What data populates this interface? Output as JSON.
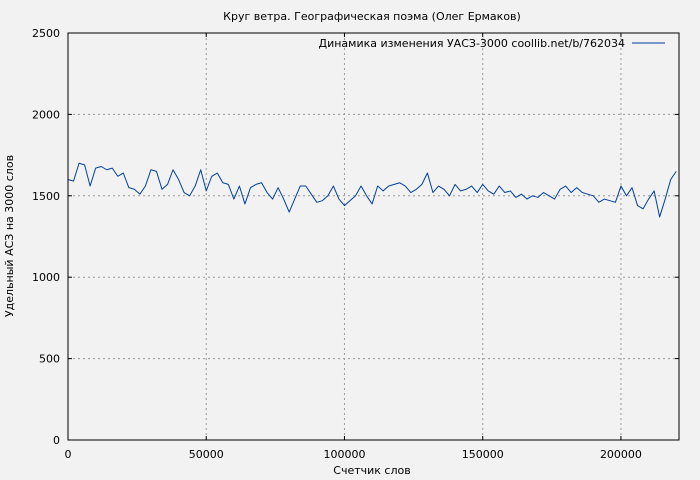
{
  "chart_data": {
    "type": "line",
    "title": "Круг ветра. Географическая поэма (Олег Ермаков)",
    "xlabel": "Счетчик слов",
    "ylabel": "Удельный АСЗ на 3000 слов",
    "xlim": [
      0,
      221000
    ],
    "ylim": [
      0,
      2500
    ],
    "xticks": [
      0,
      50000,
      100000,
      150000,
      200000
    ],
    "yticks": [
      0,
      500,
      1000,
      1500,
      2000,
      2500
    ],
    "grid": true,
    "legend_position": "top-right",
    "series": [
      {
        "name": "Динамика изменения УАСЗ-3000 coollib.net/b/762034",
        "color": "#003f9f",
        "x": [
          0,
          2000,
          4000,
          6000,
          8000,
          10000,
          12000,
          14000,
          16000,
          18000,
          20000,
          22000,
          24000,
          26000,
          28000,
          30000,
          32000,
          34000,
          36000,
          38000,
          40000,
          42000,
          44000,
          46000,
          48000,
          50000,
          52000,
          54000,
          56000,
          58000,
          60000,
          62000,
          64000,
          66000,
          68000,
          70000,
          72000,
          74000,
          76000,
          78000,
          80000,
          82000,
          84000,
          86000,
          88000,
          90000,
          92000,
          94000,
          96000,
          98000,
          100000,
          102000,
          104000,
          106000,
          108000,
          110000,
          112000,
          114000,
          116000,
          118000,
          120000,
          122000,
          124000,
          126000,
          128000,
          130000,
          132000,
          134000,
          136000,
          138000,
          140000,
          142000,
          144000,
          146000,
          148000,
          150000,
          152000,
          154000,
          156000,
          158000,
          160000,
          162000,
          164000,
          166000,
          168000,
          170000,
          172000,
          174000,
          176000,
          178000,
          180000,
          182000,
          184000,
          186000,
          188000,
          190000,
          192000,
          194000,
          196000,
          198000,
          200000,
          202000,
          204000,
          206000,
          208000,
          210000,
          212000,
          214000,
          216000,
          218000,
          220000
        ],
        "y": [
          1600,
          1590,
          1700,
          1690,
          1560,
          1670,
          1680,
          1660,
          1670,
          1620,
          1640,
          1550,
          1540,
          1510,
          1560,
          1660,
          1650,
          1540,
          1570,
          1660,
          1600,
          1520,
          1500,
          1560,
          1660,
          1530,
          1620,
          1640,
          1580,
          1570,
          1480,
          1560,
          1450,
          1550,
          1570,
          1580,
          1520,
          1480,
          1550,
          1480,
          1400,
          1480,
          1560,
          1560,
          1510,
          1460,
          1470,
          1500,
          1560,
          1480,
          1440,
          1470,
          1500,
          1560,
          1500,
          1450,
          1560,
          1530,
          1560,
          1570,
          1580,
          1560,
          1520,
          1540,
          1570,
          1640,
          1520,
          1560,
          1540,
          1500,
          1570,
          1530,
          1540,
          1560,
          1520,
          1570,
          1530,
          1510,
          1560,
          1520,
          1530,
          1490,
          1510,
          1480,
          1500,
          1490,
          1520,
          1500,
          1480,
          1540,
          1560,
          1520,
          1550,
          1520,
          1510,
          1500,
          1460,
          1480,
          1470,
          1460,
          1560,
          1500,
          1550,
          1440,
          1420,
          1480,
          1530,
          1370,
          1480,
          1600,
          1650
        ]
      }
    ]
  }
}
